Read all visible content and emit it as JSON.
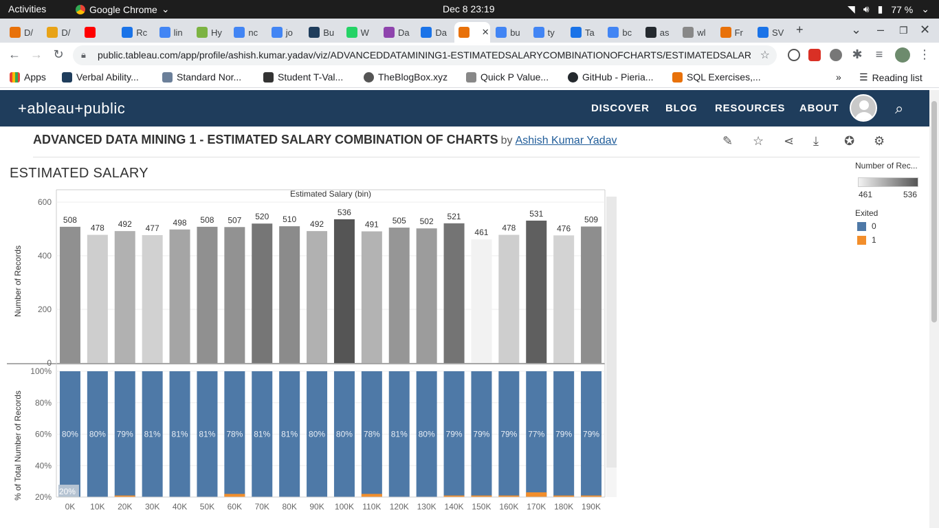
{
  "system": {
    "activities": "Activities",
    "app_name": "Google Chrome",
    "clock": "Dec 8  23:19",
    "battery": "77 %"
  },
  "tabs": [
    {
      "label": "D/",
      "color": "#e8710a"
    },
    {
      "label": "D/",
      "color": "#e8a317"
    },
    {
      "label": "",
      "color": "#ff0000"
    },
    {
      "label": "Rc",
      "color": "#1a73e8"
    },
    {
      "label": "lin",
      "color": "#4285f4"
    },
    {
      "label": "Hy",
      "color": "#7cb342"
    },
    {
      "label": "nc",
      "color": "#4285f4"
    },
    {
      "label": "jo",
      "color": "#4285f4"
    },
    {
      "label": "Bu",
      "color": "#1f3d5c"
    },
    {
      "label": "W",
      "color": "#25d366"
    },
    {
      "label": "Da",
      "color": "#8e44ad"
    },
    {
      "label": "Da",
      "color": "#1a73e8"
    },
    {
      "label": "",
      "color": "#e8710a"
    },
    {
      "label": "bu",
      "color": "#4285f4"
    },
    {
      "label": "ty",
      "color": "#4285f4"
    },
    {
      "label": "Ta",
      "color": "#1a73e8"
    },
    {
      "label": "bc",
      "color": "#4285f4"
    },
    {
      "label": "as",
      "color": "#24292e"
    },
    {
      "label": "wl",
      "color": "#888888"
    },
    {
      "label": "Fr",
      "color": "#e8710a"
    },
    {
      "label": "SV",
      "color": "#1a73e8"
    }
  ],
  "address": {
    "url": "public.tableau.com/app/profile/ashish.kumar.yadav/viz/ADVANCEDDATAMINING1-ESTIMATEDSALARYCOMBINATIONOFCHARTS/ESTIMATEDSALARY"
  },
  "bookmarks": [
    {
      "label": "Apps"
    },
    {
      "label": "Verbal Ability..."
    },
    {
      "label": "Standard Nor..."
    },
    {
      "label": "Student T-Val..."
    },
    {
      "label": "TheBlogBox.xyz"
    },
    {
      "label": "Quick P Value..."
    },
    {
      "label": "GitHub - Pieria..."
    },
    {
      "label": "SQL Exercises,..."
    }
  ],
  "reading_list": "Reading list",
  "tableau": {
    "logo": "+ableau+public",
    "nav": [
      "DISCOVER",
      "BLOG",
      "RESOURCES",
      "ABOUT"
    ],
    "viz_title": "ADVANCED DATA MINING 1 - ESTIMATED SALARY COMBINATION OF CHARTS",
    "by": "by",
    "author": "Ashish Kumar Yadav",
    "sheet_title": "ESTIMATED SALARY"
  },
  "legend": {
    "count_title": "Number of Rec...",
    "count_min": "461",
    "count_max": "536",
    "exited_title": "Exited",
    "exited_items": [
      {
        "label": "0",
        "color": "#4e79a7"
      },
      {
        "label": "1",
        "color": "#f28e2b"
      }
    ]
  },
  "chart_data": {
    "type": "bar",
    "title": "Estimated Salary (bin)",
    "categories": [
      "0K",
      "10K",
      "20K",
      "30K",
      "40K",
      "50K",
      "60K",
      "70K",
      "80K",
      "90K",
      "100K",
      "110K",
      "120K",
      "130K",
      "140K",
      "150K",
      "160K",
      "170K",
      "180K",
      "190K"
    ],
    "top_panel": {
      "ylabel": "Number of Records",
      "ylim": [
        0,
        600
      ],
      "yticks": [
        "600",
        "400",
        "200",
        "0"
      ],
      "values": [
        508,
        478,
        492,
        477,
        498,
        508,
        507,
        520,
        510,
        492,
        536,
        491,
        505,
        502,
        521,
        461,
        478,
        531,
        476,
        509
      ],
      "color_scale": [
        "#f2f2f2",
        "#555555"
      ]
    },
    "bottom_panel": {
      "ylabel": "% of Total Number of Records",
      "yticks": [
        "100%",
        "80%",
        "60%",
        "40%",
        "20%"
      ],
      "series": [
        {
          "name": "0",
          "color": "#4e79a7",
          "labels": [
            "80%",
            "80%",
            "79%",
            "81%",
            "81%",
            "81%",
            "78%",
            "81%",
            "81%",
            "80%",
            "80%",
            "78%",
            "81%",
            "80%",
            "79%",
            "79%",
            "79%",
            "77%",
            "79%",
            "79%"
          ]
        },
        {
          "name": "1",
          "color": "#f28e2b"
        }
      ],
      "extra_label": "20%"
    }
  }
}
